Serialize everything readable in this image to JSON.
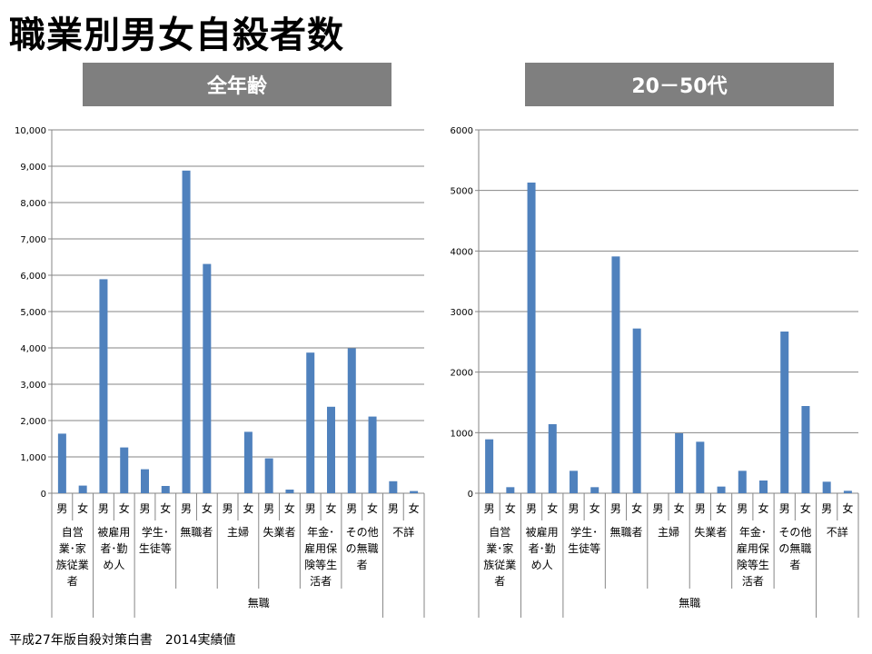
{
  "page": {
    "title": "職業別男女自殺者数",
    "footer": "平成27年版自殺対策白書　2014実績値"
  },
  "colors": {
    "bar": "#4f81bd",
    "banner": "#7f7f7f",
    "grid": "#868686"
  },
  "chart_data": [
    {
      "type": "bar",
      "title": "全年齢",
      "ylim": [
        0,
        10000
      ],
      "yticks": [
        "0",
        "1,000",
        "2,000",
        "3,000",
        "4,000",
        "5,000",
        "6,000",
        "7,000",
        "8,000",
        "9,000",
        "10,000"
      ],
      "categories": [
        "男",
        "女",
        "男",
        "女",
        "男",
        "女",
        "男",
        "女",
        "男",
        "女",
        "男",
        "女",
        "男",
        "女",
        "男",
        "女",
        "男",
        "女"
      ],
      "groups": [
        [
          "自営",
          "業･家",
          "族従業",
          "者"
        ],
        [
          "被雇用",
          "者･勤",
          "め人"
        ],
        [
          "学生･",
          "生徒等"
        ],
        [
          "無職者"
        ],
        [
          "主婦"
        ],
        [
          "失業者"
        ],
        [
          "年金･",
          "雇用保",
          "険等生",
          "活者"
        ],
        [
          "その他",
          "の無職",
          "者"
        ],
        [
          "不詳"
        ]
      ],
      "supergroup": {
        "label": "無職",
        "from_group": 2,
        "to_group": 7
      },
      "values": [
        1640,
        210,
        5890,
        1260,
        660,
        200,
        8880,
        6310,
        0,
        1690,
        960,
        100,
        3870,
        2380,
        3990,
        2110,
        330,
        60
      ],
      "grid": true
    },
    {
      "type": "bar",
      "title": "20－50代",
      "ylim": [
        0,
        6000
      ],
      "yticks": [
        "0",
        "1000",
        "2000",
        "3000",
        "4000",
        "5000",
        "6000"
      ],
      "categories": [
        "男",
        "女",
        "男",
        "女",
        "男",
        "女",
        "男",
        "女",
        "男",
        "女",
        "男",
        "女",
        "男",
        "女",
        "男",
        "女",
        "男",
        "女"
      ],
      "groups": [
        [
          "自営",
          "業･家",
          "族従業",
          "者"
        ],
        [
          "被雇用",
          "者･勤",
          "め人"
        ],
        [
          "学生･",
          "生徒等"
        ],
        [
          "無職者"
        ],
        [
          "主婦"
        ],
        [
          "失業者"
        ],
        [
          "年金･",
          "雇用保",
          "険等生",
          "活者"
        ],
        [
          "その他",
          "の無職",
          "者"
        ],
        [
          "不詳"
        ]
      ],
      "supergroup": {
        "label": "無職",
        "from_group": 2,
        "to_group": 7
      },
      "values": [
        890,
        100,
        5130,
        1140,
        370,
        100,
        3910,
        2720,
        0,
        990,
        850,
        110,
        370,
        210,
        2670,
        1440,
        190,
        40
      ],
      "grid": true
    }
  ]
}
